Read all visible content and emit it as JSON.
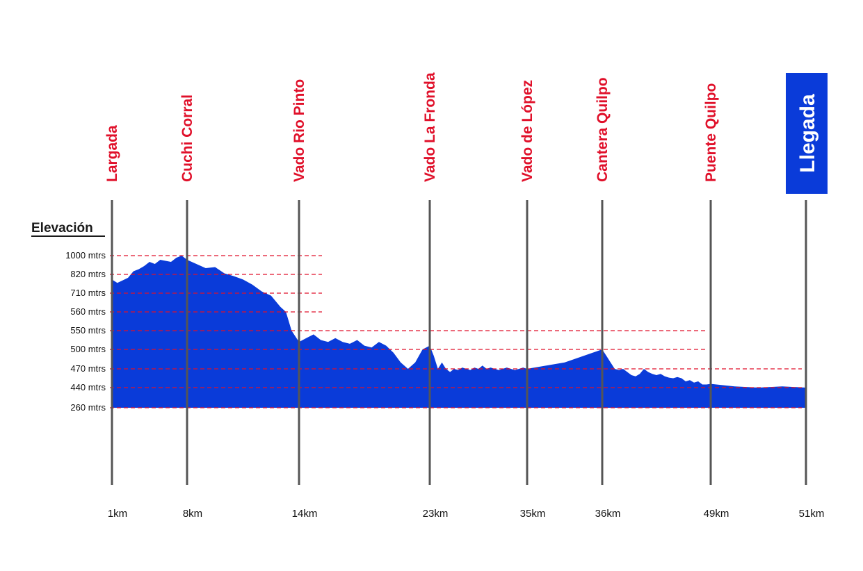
{
  "chart_data": {
    "type": "area",
    "title": "",
    "ylabel": "Elevación",
    "xlabel": "",
    "colors": {
      "area": "#0a3bd9",
      "checkpoint_label": "#e0102a",
      "finish_box": "#0a3bd9",
      "grid": "#e0102a",
      "vline": "#555555"
    },
    "y_ticks": [
      "1000 mtrs",
      "820 mtrs",
      "710 mtrs",
      "560 mtrs",
      "550 mtrs",
      "500 mtrs",
      "470 mtrs",
      "440 mtrs",
      "260 mtrs"
    ],
    "checkpoints": [
      {
        "name": "Largada",
        "km_label": "1km",
        "km": 1
      },
      {
        "name": "Cuchi Corral",
        "km_label": "8km",
        "km": 8
      },
      {
        "name": "Vado Rio Pinto",
        "km_label": "14km",
        "km": 14
      },
      {
        "name": "Vado La Fronda",
        "km_label": "23km",
        "km": 23
      },
      {
        "name": "Vado de López",
        "km_label": "35km",
        "km": 35
      },
      {
        "name": "Cantera Quilpo",
        "km_label": "36km",
        "km": 36
      },
      {
        "name": "Puente Quilpo",
        "km_label": "49km",
        "km": 49
      },
      {
        "name": "Llegada",
        "km_label": "51km",
        "km": 51,
        "finish": true
      }
    ],
    "profile": [
      [
        0.0,
        0.78
      ],
      [
        0.02,
        0.8
      ],
      [
        0.04,
        0.79
      ],
      [
        0.05,
        0.82
      ],
      [
        0.06,
        0.81
      ],
      [
        0.08,
        0.88
      ],
      [
        0.09,
        0.87
      ],
      [
        0.1,
        0.87
      ],
      [
        0.11,
        0.9
      ],
      [
        0.13,
        0.94
      ],
      [
        0.14,
        0.93
      ],
      [
        0.15,
        0.96
      ],
      [
        0.16,
        0.95
      ],
      [
        0.17,
        0.94
      ],
      [
        0.18,
        0.91
      ],
      [
        0.19,
        0.91
      ],
      [
        0.2,
        0.96
      ],
      [
        0.22,
        0.97
      ],
      [
        0.24,
        0.99
      ],
      [
        0.26,
        0.96
      ],
      [
        0.28,
        0.93
      ],
      [
        0.3,
        0.87
      ],
      [
        0.31,
        0.88
      ],
      [
        0.32,
        0.86
      ],
      [
        0.33,
        0.86
      ],
      [
        0.34,
        0.8
      ],
      [
        0.36,
        0.84
      ],
      [
        0.38,
        0.81
      ],
      [
        0.4,
        0.72
      ],
      [
        0.42,
        0.72
      ],
      [
        0.44,
        0.64
      ],
      [
        0.46,
        0.63
      ],
      [
        0.49,
        0.58
      ],
      [
        0.52,
        0.53
      ],
      [
        0.54,
        0.48
      ],
      [
        0.55,
        0.4
      ],
      [
        0.56,
        0.44
      ],
      [
        0.57,
        0.44
      ],
      [
        0.58,
        0.43
      ],
      [
        0.6,
        0.42
      ],
      [
        0.61,
        0.33
      ],
      [
        0.62,
        0.33
      ],
      [
        0.63,
        0.34
      ],
      [
        0.645,
        0.33
      ],
      [
        0.66,
        0.37
      ],
      [
        0.67,
        0.34
      ],
      [
        0.68,
        0.27
      ],
      [
        0.69,
        0.36
      ],
      [
        0.7,
        0.34
      ],
      [
        0.73,
        0.32
      ],
      [
        0.76,
        0.32
      ],
      [
        0.77,
        0.32
      ],
      [
        0.79,
        0.36
      ],
      [
        0.8,
        0.31
      ],
      [
        0.83,
        0.34
      ],
      [
        0.86,
        0.33
      ],
      [
        0.88,
        0.34
      ],
      [
        0.9,
        0.33
      ],
      [
        0.92,
        0.36
      ],
      [
        0.95,
        0.31
      ],
      [
        0.98,
        0.32
      ],
      [
        1.0,
        0.31
      ],
      [
        1.01,
        0.3
      ],
      [
        1.02,
        0.31
      ],
      [
        1.03,
        0.29
      ],
      [
        1.045,
        0.28
      ],
      [
        1.06,
        0.27
      ],
      [
        1.07,
        0.25
      ],
      [
        1.08,
        0.24
      ],
      [
        1.09,
        0.26
      ],
      [
        1.1,
        0.27
      ],
      [
        1.12,
        0.28
      ],
      [
        1.14,
        0.26
      ],
      [
        1.15,
        0.24
      ],
      [
        1.16,
        0.24
      ],
      [
        1.17,
        0.26
      ],
      [
        1.18,
        0.22
      ],
      [
        1.19,
        0.24
      ],
      [
        1.2,
        0.23
      ],
      [
        1.21,
        0.26
      ],
      [
        1.22,
        0.28
      ],
      [
        1.23,
        0.31
      ],
      [
        1.24,
        0.26
      ],
      [
        1.25,
        0.28
      ],
      [
        1.26,
        0.27
      ],
      [
        1.27,
        0.23
      ],
      [
        1.28,
        0.22
      ],
      [
        1.29,
        0.22
      ],
      [
        1.3,
        0.2
      ],
      [
        1.31,
        0.2
      ],
      [
        1.32,
        0.21
      ],
      [
        1.33,
        0.2
      ],
      [
        1.34,
        0.21
      ],
      [
        1.35,
        0.2
      ],
      [
        1.36,
        0.21
      ],
      [
        1.37,
        0.21
      ],
      [
        1.38,
        0.22
      ],
      [
        1.4,
        0.22
      ],
      [
        1.42,
        0.2
      ],
      [
        1.44,
        0.21
      ],
      [
        1.46,
        0.22
      ],
      [
        1.48,
        0.2
      ],
      [
        1.5,
        0.18
      ],
      [
        1.52,
        0.19
      ],
      [
        1.54,
        0.18
      ],
      [
        1.56,
        0.2
      ],
      [
        1.58,
        0.18
      ],
      [
        1.6,
        0.21
      ],
      [
        1.62,
        0.19
      ],
      [
        1.64,
        0.18
      ],
      [
        1.66,
        0.19
      ],
      [
        1.68,
        0.19
      ],
      [
        1.69,
        0.19
      ],
      [
        1.7,
        0.19
      ],
      [
        1.72,
        0.19
      ],
      [
        1.73,
        0.19
      ],
      [
        1.74,
        0.2
      ],
      [
        1.75,
        0.2
      ],
      [
        1.76,
        0.2
      ],
      [
        1.77,
        0.21
      ],
      [
        1.78,
        0.21
      ],
      [
        1.8,
        0.2
      ],
      [
        1.81,
        0.21
      ],
      [
        1.82,
        0.21
      ],
      [
        1.83,
        0.2
      ],
      [
        1.84,
        0.2
      ],
      [
        1.85,
        0.21
      ],
      [
        1.86,
        0.21
      ],
      [
        1.87,
        0.2
      ],
      [
        1.88,
        0.19
      ],
      [
        1.89,
        0.2
      ],
      [
        1.9,
        0.21
      ],
      [
        1.91,
        0.21
      ],
      [
        1.92,
        0.21
      ],
      [
        1.93,
        0.2
      ],
      [
        1.94,
        0.21
      ],
      [
        1.95,
        0.21
      ],
      [
        1.96,
        0.21
      ],
      [
        1.97,
        0.21
      ],
      [
        1.98,
        0.21
      ],
      [
        1.99,
        0.21
      ],
      [
        2.0,
        0.19
      ],
      [
        2.01,
        0.17
      ],
      [
        2.02,
        0.17
      ],
      [
        2.03,
        0.17
      ],
      [
        2.04,
        0.17
      ],
      [
        2.05,
        0.17
      ],
      [
        2.06,
        0.17
      ]
    ],
    "profile_points": [
      [
        1.0,
        790
      ],
      [
        1.5,
        770
      ],
      [
        2.0,
        785
      ],
      [
        2.5,
        800
      ],
      [
        3.0,
        850
      ],
      [
        3.5,
        870
      ],
      [
        4.0,
        900
      ],
      [
        4.5,
        940
      ],
      [
        5.0,
        920
      ],
      [
        5.5,
        960
      ],
      [
        6.0,
        950
      ],
      [
        6.5,
        940
      ],
      [
        7.0,
        980
      ],
      [
        7.5,
        1000
      ],
      [
        8.0,
        960
      ],
      [
        8.5,
        920
      ],
      [
        9.0,
        880
      ],
      [
        9.5,
        890
      ],
      [
        10.0,
        830
      ],
      [
        10.5,
        810
      ],
      [
        11.0,
        790
      ],
      [
        11.5,
        760
      ],
      [
        12.0,
        720
      ],
      [
        12.5,
        690
      ],
      [
        13.0,
        600
      ],
      [
        13.3,
        560
      ],
      [
        13.6,
        550
      ],
      [
        14.0,
        520
      ],
      [
        14.5,
        530
      ],
      [
        15.0,
        540
      ],
      [
        15.5,
        525
      ],
      [
        16.0,
        520
      ],
      [
        16.5,
        530
      ],
      [
        17.0,
        520
      ],
      [
        17.5,
        515
      ],
      [
        18.0,
        525
      ],
      [
        18.5,
        510
      ],
      [
        19.0,
        505
      ],
      [
        19.5,
        520
      ],
      [
        20.0,
        510
      ],
      [
        20.5,
        495
      ],
      [
        21.0,
        480
      ],
      [
        21.5,
        470
      ],
      [
        22.0,
        480
      ],
      [
        22.5,
        500
      ],
      [
        23.0,
        510
      ],
      [
        23.5,
        490
      ],
      [
        24.0,
        470
      ],
      [
        24.5,
        480
      ],
      [
        25.0,
        470
      ],
      [
        25.5,
        465
      ],
      [
        26.0,
        470
      ],
      [
        26.5,
        468
      ],
      [
        27.0,
        472
      ],
      [
        27.5,
        470
      ],
      [
        28.0,
        468
      ],
      [
        28.5,
        472
      ],
      [
        29.0,
        470
      ],
      [
        29.5,
        475
      ],
      [
        30.0,
        470
      ],
      [
        30.5,
        472
      ],
      [
        31.0,
        470
      ],
      [
        31.5,
        468
      ],
      [
        32.0,
        470
      ],
      [
        32.5,
        472
      ],
      [
        33.0,
        470
      ],
      [
        33.5,
        468
      ],
      [
        34.0,
        470
      ],
      [
        34.5,
        472
      ],
      [
        35.0,
        470
      ],
      [
        35.5,
        480
      ],
      [
        36.0,
        500
      ],
      [
        36.5,
        490
      ],
      [
        37.0,
        480
      ],
      [
        37.5,
        470
      ],
      [
        38.0,
        468
      ],
      [
        38.5,
        470
      ],
      [
        39.0,
        465
      ],
      [
        39.5,
        460
      ],
      [
        40.0,
        458
      ],
      [
        40.5,
        462
      ],
      [
        41.0,
        470
      ],
      [
        41.5,
        465
      ],
      [
        42.0,
        462
      ],
      [
        42.5,
        460
      ],
      [
        43.0,
        462
      ],
      [
        43.5,
        458
      ],
      [
        44.0,
        456
      ],
      [
        44.5,
        455
      ],
      [
        45.0,
        457
      ],
      [
        45.5,
        455
      ],
      [
        46.0,
        450
      ],
      [
        46.5,
        452
      ],
      [
        47.0,
        448
      ],
      [
        47.5,
        450
      ],
      [
        48.0,
        445
      ],
      [
        48.5,
        445
      ],
      [
        49.0,
        446
      ],
      [
        49.5,
        442
      ],
      [
        50.0,
        440
      ],
      [
        50.5,
        442
      ],
      [
        51.0,
        440
      ]
    ]
  }
}
